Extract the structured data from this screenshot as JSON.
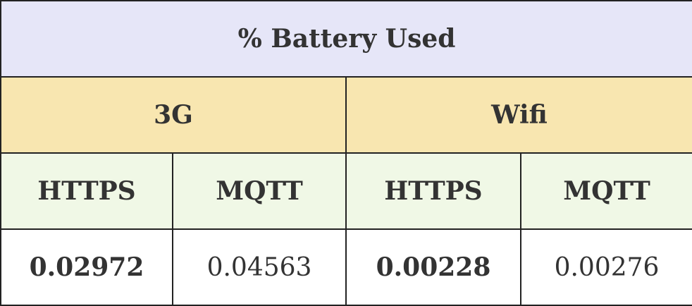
{
  "table": {
    "title": "% Battery Used",
    "networks": [
      {
        "label": "3G"
      },
      {
        "label": "Wifi"
      }
    ],
    "protocols": [
      "HTTPS",
      "MQTT",
      "HTTPS",
      "MQTT"
    ],
    "values": [
      {
        "value": "0.02972",
        "bold": true
      },
      {
        "value": "0.04563",
        "bold": false
      },
      {
        "value": "0.00228",
        "bold": true
      },
      {
        "value": "0.00276",
        "bold": false
      }
    ],
    "colors": {
      "title_bg": "#e6e6f8",
      "network_bg": "#f8e6b0",
      "protocol_bg": "#f0f8e6",
      "value_bg": "#ffffff",
      "border": "#222222",
      "text": "#333333"
    }
  }
}
